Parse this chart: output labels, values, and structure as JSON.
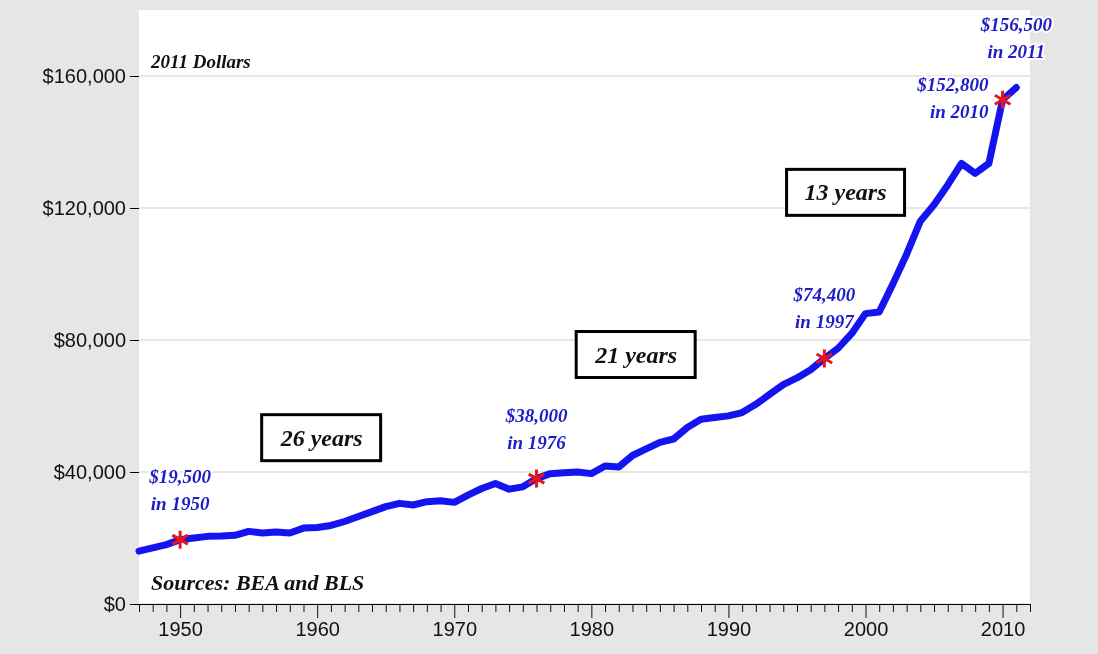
{
  "chart_data": {
    "type": "line",
    "xlim": [
      1947,
      2012
    ],
    "ylim": [
      0,
      180000
    ],
    "yticks": [
      {
        "value": 0,
        "label": "$0"
      },
      {
        "value": 40000,
        "label": "$40,000"
      },
      {
        "value": 80000,
        "label": "$80,000"
      },
      {
        "value": 120000,
        "label": "$120,000"
      },
      {
        "value": 160000,
        "label": "$160,000"
      }
    ],
    "xticks": [
      {
        "value": 1947,
        "label": null
      },
      {
        "value": 1948,
        "label": null
      },
      {
        "value": 1949,
        "label": null
      },
      1950,
      {
        "value": 1951,
        "label": null
      },
      {
        "value": 1952,
        "label": null
      },
      {
        "value": 1953,
        "label": null
      },
      {
        "value": 1954,
        "label": null
      },
      {
        "value": 1955,
        "label": null
      },
      {
        "value": 1956,
        "label": null
      },
      {
        "value": 1957,
        "label": null
      },
      {
        "value": 1958,
        "label": null
      },
      {
        "value": 1959,
        "label": null
      },
      1960,
      {
        "value": 1961,
        "label": null
      },
      {
        "value": 1962,
        "label": null
      },
      {
        "value": 1963,
        "label": null
      },
      {
        "value": 1964,
        "label": null
      },
      {
        "value": 1965,
        "label": null
      },
      {
        "value": 1966,
        "label": null
      },
      {
        "value": 1967,
        "label": null
      },
      {
        "value": 1968,
        "label": null
      },
      {
        "value": 1969,
        "label": null
      },
      1970,
      {
        "value": 1971,
        "label": null
      },
      {
        "value": 1972,
        "label": null
      },
      {
        "value": 1973,
        "label": null
      },
      {
        "value": 1974,
        "label": null
      },
      {
        "value": 1975,
        "label": null
      },
      {
        "value": 1976,
        "label": null
      },
      {
        "value": 1977,
        "label": null
      },
      {
        "value": 1978,
        "label": null
      },
      {
        "value": 1979,
        "label": null
      },
      1980,
      {
        "value": 1981,
        "label": null
      },
      {
        "value": 1982,
        "label": null
      },
      {
        "value": 1983,
        "label": null
      },
      {
        "value": 1984,
        "label": null
      },
      {
        "value": 1985,
        "label": null
      },
      {
        "value": 1986,
        "label": null
      },
      {
        "value": 1987,
        "label": null
      },
      {
        "value": 1988,
        "label": null
      },
      {
        "value": 1989,
        "label": null
      },
      1990,
      {
        "value": 1991,
        "label": null
      },
      {
        "value": 1992,
        "label": null
      },
      {
        "value": 1993,
        "label": null
      },
      {
        "value": 1994,
        "label": null
      },
      {
        "value": 1995,
        "label": null
      },
      {
        "value": 1996,
        "label": null
      },
      {
        "value": 1997,
        "label": null
      },
      {
        "value": 1998,
        "label": null
      },
      {
        "value": 1999,
        "label": null
      },
      2000,
      {
        "value": 2001,
        "label": null
      },
      {
        "value": 2002,
        "label": null
      },
      {
        "value": 2003,
        "label": null
      },
      {
        "value": 2004,
        "label": null
      },
      {
        "value": 2005,
        "label": null
      },
      {
        "value": 2006,
        "label": null
      },
      {
        "value": 2007,
        "label": null
      },
      {
        "value": 2008,
        "label": null
      },
      {
        "value": 2009,
        "label": null
      },
      2010,
      {
        "value": 2011,
        "label": null
      },
      {
        "value": 2012,
        "label": null
      }
    ],
    "grid": "y",
    "line_style": "solid",
    "series": [
      {
        "color": "#1414f0",
        "marker": "none",
        "x": [
          1947,
          1948,
          1949,
          1950,
          1951,
          1952,
          1953,
          1954,
          1955,
          1956,
          1957,
          1958,
          1959,
          1960,
          1961,
          1962,
          1963,
          1964,
          1965,
          1966,
          1967,
          1968,
          1969,
          1970,
          1971,
          1972,
          1973,
          1974,
          1975,
          1976,
          1977,
          1978,
          1979,
          1980,
          1981,
          1982,
          1983,
          1984,
          1985,
          1986,
          1987,
          1988,
          1989,
          1990,
          1991,
          1992,
          1993,
          1994,
          1995,
          1996,
          1997,
          1998,
          1999,
          2000,
          2001,
          2002,
          2003,
          2004,
          2005,
          2006,
          2007,
          2008,
          2009,
          2010,
          2011
        ],
        "values": [
          16000,
          17000,
          18000,
          19500,
          20000,
          20500,
          20600,
          20800,
          22000,
          21500,
          21800,
          21500,
          23000,
          23200,
          23800,
          25000,
          26500,
          28000,
          29500,
          30500,
          30000,
          31000,
          31300,
          30800,
          33000,
          35000,
          36500,
          34800,
          35500,
          38000,
          39500,
          39800,
          40000,
          39500,
          41800,
          41500,
          45000,
          47000,
          49000,
          50000,
          53500,
          56000,
          56500,
          57000,
          58000,
          60500,
          63500,
          66500,
          68500,
          71000,
          74400,
          77500,
          82000,
          88000,
          88500,
          97000,
          106000,
          116000,
          121000,
          127000,
          133500,
          130500,
          133500,
          152800,
          156500
        ]
      },
      {
        "type": "scatter",
        "color": "#e8141e",
        "marker": "cross",
        "x": [
          1950,
          1976,
          1997,
          2010
        ],
        "values": [
          19500,
          38000,
          74400,
          152800
        ]
      }
    ],
    "annotations": [
      "2011 Dollars",
      "Sources: BEA and BLS",
      {
        "text": "$19,500\nin 1950",
        "x": 1950,
        "y": 19500
      },
      {
        "text": "$38,000\nin 1976",
        "x": 1976,
        "y": 38000
      },
      {
        "text": "$74,400\nin 1997",
        "x": 1997,
        "y": 74400
      },
      {
        "text": "$152,800\nin 2010",
        "x": 2010,
        "y": 152800
      },
      {
        "text": "$156,500\nin 2011",
        "x": 2011,
        "y": 156500
      },
      "26 years",
      "21 years",
      "13 years"
    ]
  }
}
